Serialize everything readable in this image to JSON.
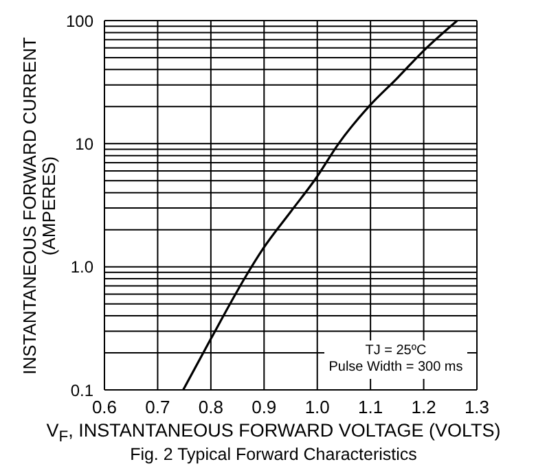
{
  "chart_data": {
    "type": "line",
    "title": "Fig. 2  Typical Forward Characteristics",
    "xlabel": "V$_{F}$, INSTANTANEOUS FORWARD VOLTAGE (VOLTS)",
    "ylabel": "INSTANTANEOUS FORWARD CURRENT\n(AMPERES)",
    "annotations": [
      "TJ = 25ºC",
      "Pulse Width = 300 ms"
    ],
    "log": "y",
    "grid": true,
    "marker": "none",
    "line_style": "solid",
    "xlim": [
      0.6,
      1.3
    ],
    "xticks": [
      0.6,
      0.7,
      0.8,
      0.9,
      {
        "value": 1.0,
        "label": "1.0"
      },
      1.1,
      1.2,
      1.3
    ],
    "ylim": [
      0.1,
      100
    ],
    "yticks": [
      0.1,
      {
        "value": 0.2,
        "label": null
      },
      {
        "value": 0.3,
        "label": null
      },
      {
        "value": 0.4,
        "label": null
      },
      {
        "value": 0.5,
        "label": null
      },
      {
        "value": 0.6,
        "label": null
      },
      {
        "value": 0.7,
        "label": null
      },
      {
        "value": 0.8,
        "label": null
      },
      {
        "value": 0.9,
        "label": null
      },
      {
        "value": 1,
        "label": "1.0"
      },
      {
        "value": 2,
        "label": null
      },
      {
        "value": 3,
        "label": null
      },
      {
        "value": 4,
        "label": null
      },
      {
        "value": 5,
        "label": null
      },
      {
        "value": 6,
        "label": null
      },
      {
        "value": 7,
        "label": null
      },
      {
        "value": 8,
        "label": null
      },
      {
        "value": 9,
        "label": null
      },
      10,
      {
        "value": 20,
        "label": null
      },
      {
        "value": 30,
        "label": null
      },
      {
        "value": 40,
        "label": null
      },
      {
        "value": 50,
        "label": null
      },
      {
        "value": 60,
        "label": null
      },
      {
        "value": 70,
        "label": null
      },
      {
        "value": 80,
        "label": null
      },
      {
        "value": 90,
        "label": null
      },
      100
    ],
    "series": [
      {
        "color": "#000000",
        "x": [
          0.748,
          0.8,
          0.868,
          0.898,
          0.95,
          0.997,
          1.04,
          1.099,
          1.15,
          1.2,
          1.263
        ],
        "values": [
          0.1,
          0.26,
          0.87,
          1.4,
          2.8,
          5.2,
          10,
          20.5,
          34,
          57,
          100
        ]
      }
    ]
  }
}
